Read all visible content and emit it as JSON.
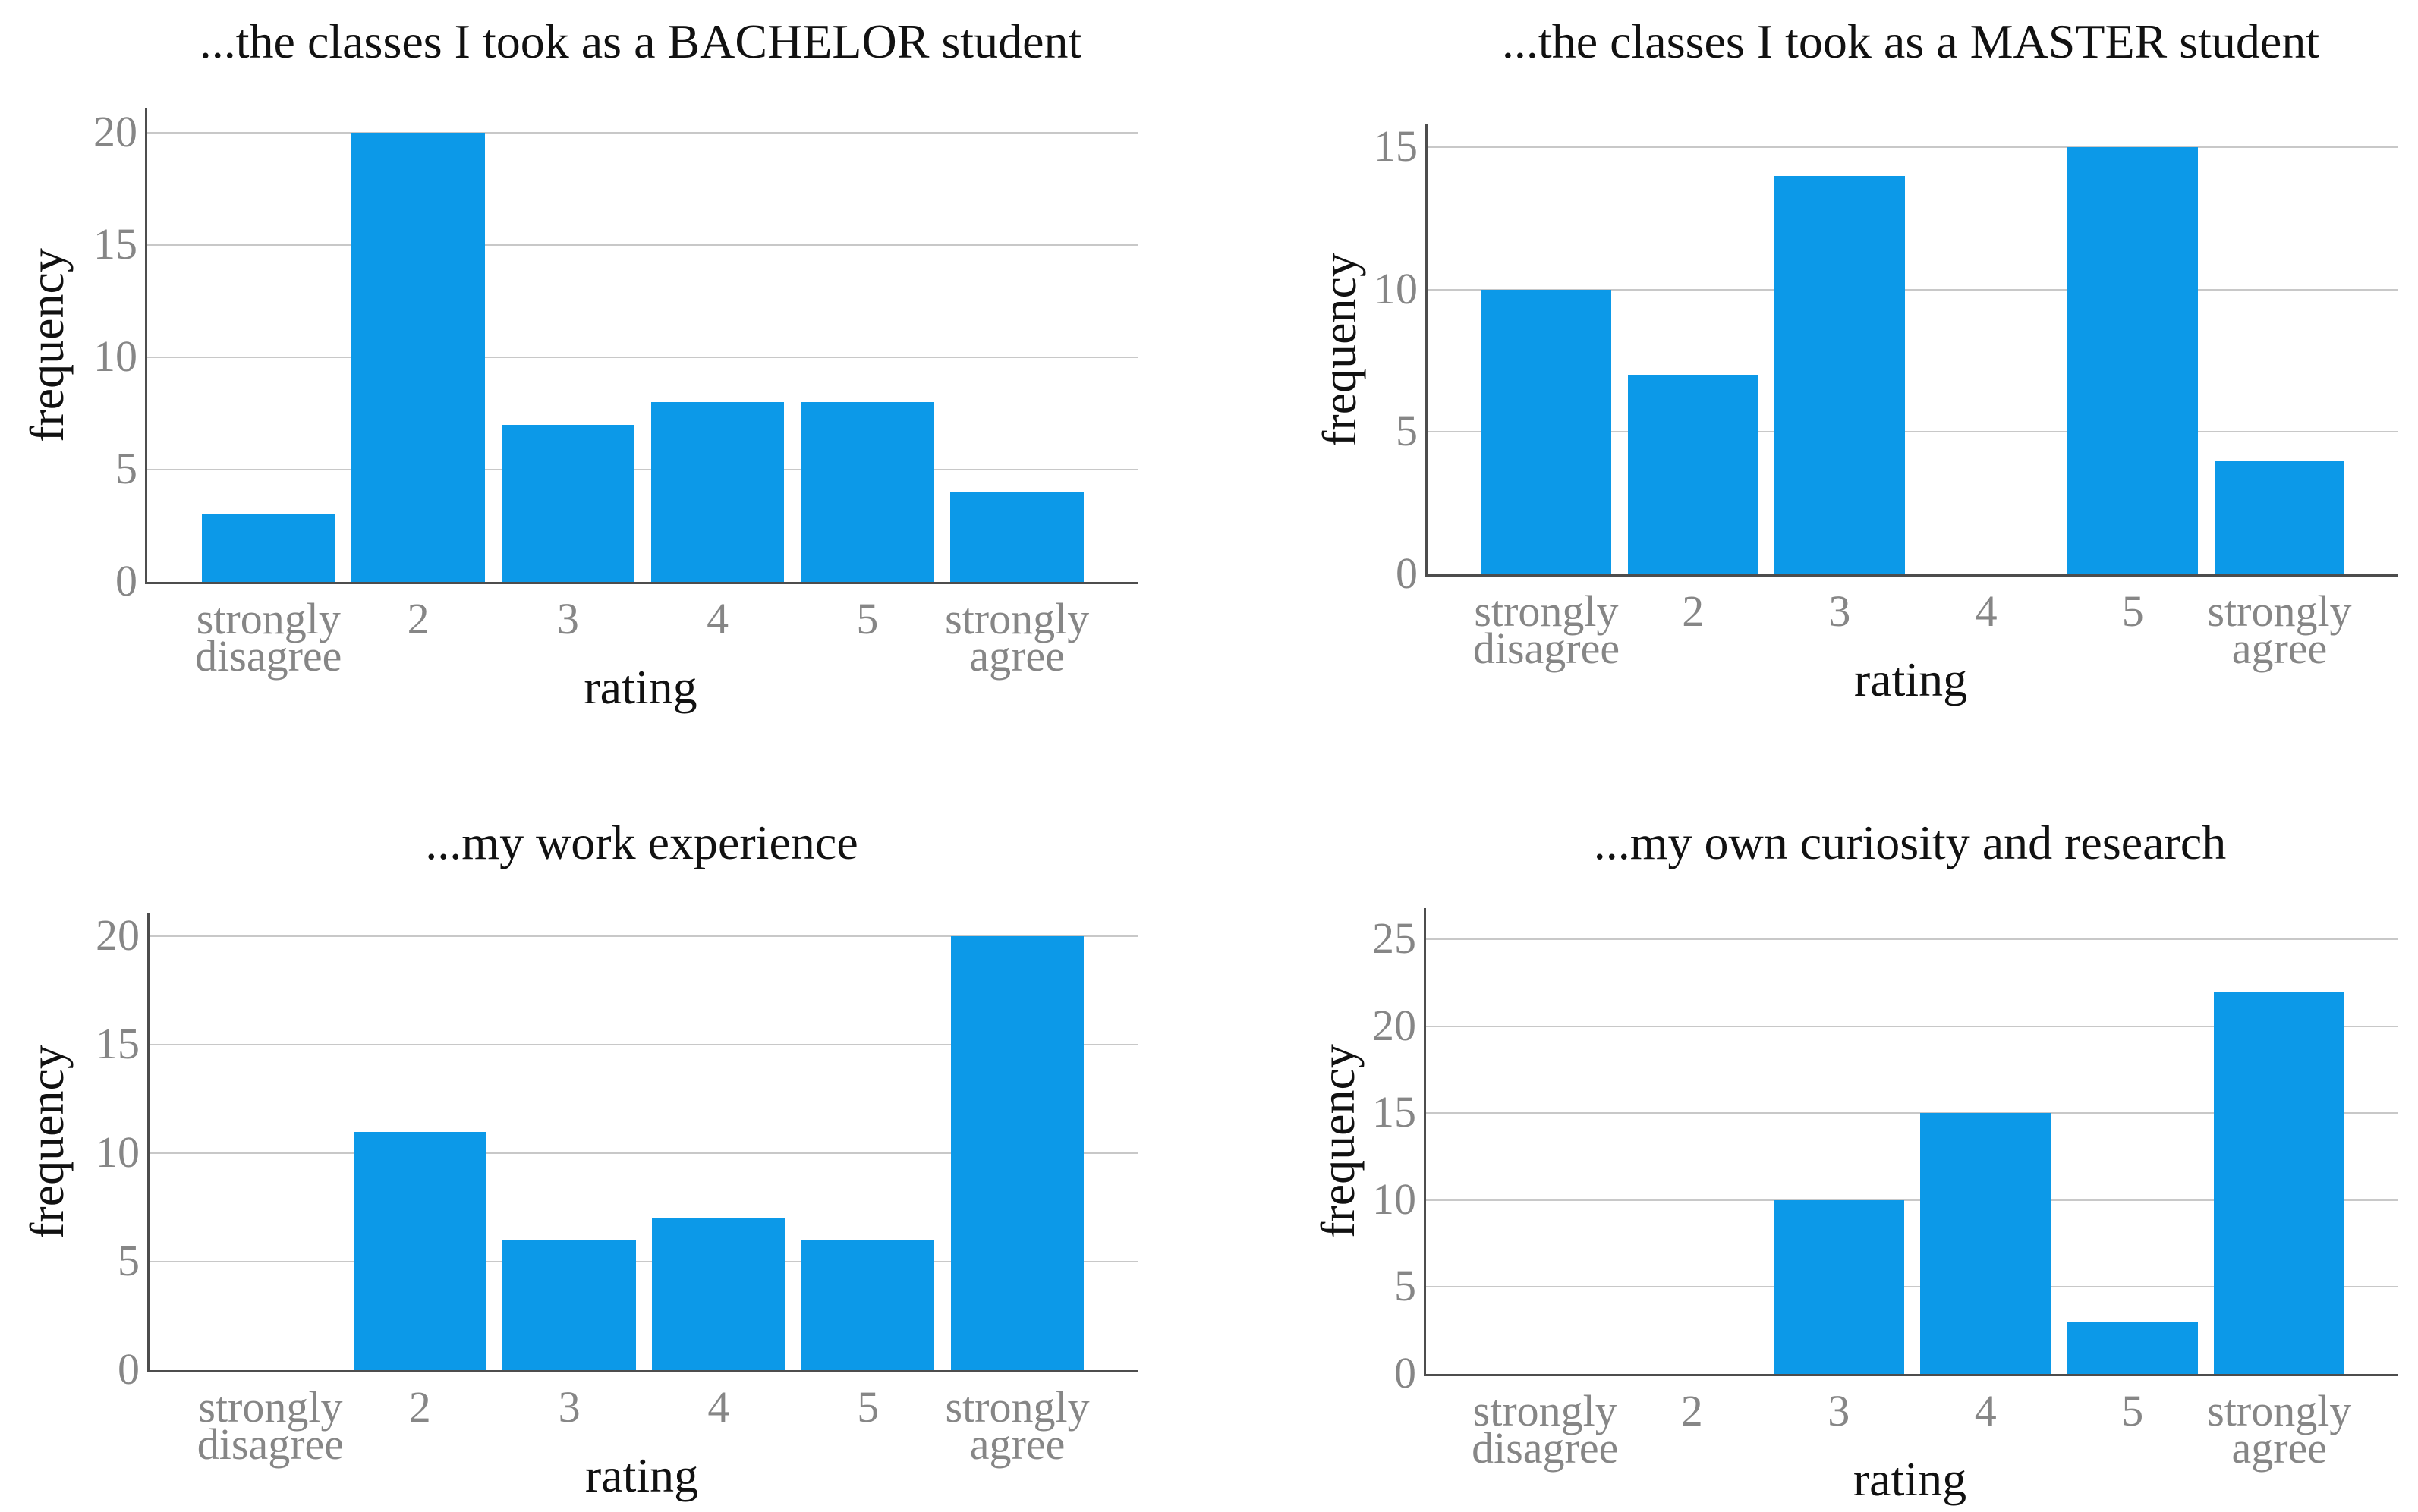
{
  "figure_title": "",
  "colors": {
    "bar": "#0c99e8",
    "gridline": "#c8c8c8",
    "spine": "#4d4d4d",
    "tick_label": "#868686",
    "text": "#111111",
    "background": "#ffffff"
  },
  "chart_data": [
    {
      "type": "bar",
      "title": "...the classes I took as a BACHELOR student",
      "xlabel": "rating",
      "ylabel": "frequency",
      "categories": [
        "strongly\ndisagree",
        "2",
        "3",
        "4",
        "5",
        "strongly\nagree"
      ],
      "values": [
        3,
        20,
        7,
        8,
        8,
        4
      ],
      "yticks": [
        0,
        5,
        10,
        15,
        20
      ],
      "ylim": [
        0,
        21.1
      ],
      "grid": "horizontal",
      "legend": "none"
    },
    {
      "type": "bar",
      "title": "...the classes I took as a MASTER student",
      "xlabel": "rating",
      "ylabel": "frequency",
      "categories": [
        "strongly\ndisagree",
        "2",
        "3",
        "4",
        "5",
        "strongly\nagree"
      ],
      "values": [
        10,
        7,
        14,
        0,
        15,
        4
      ],
      "yticks": [
        0,
        5,
        10,
        15
      ],
      "ylim": [
        0,
        15.8
      ],
      "grid": "horizontal",
      "legend": "none"
    },
    {
      "type": "bar",
      "title": "...my work experience",
      "xlabel": "rating",
      "ylabel": "frequency",
      "categories": [
        "strongly\ndisagree",
        "2",
        "3",
        "4",
        "5",
        "strongly\nagree"
      ],
      "values": [
        0,
        11,
        6,
        7,
        6,
        20
      ],
      "yticks": [
        0,
        5,
        10,
        15,
        20
      ],
      "ylim": [
        0,
        21.1
      ],
      "grid": "horizontal",
      "legend": "none"
    },
    {
      "type": "bar",
      "title": "...my own curiosity and research",
      "xlabel": "rating",
      "ylabel": "frequency",
      "categories": [
        "strongly\ndisagree",
        "2",
        "3",
        "4",
        "5",
        "strongly\nagree"
      ],
      "values": [
        0,
        0,
        10,
        15,
        3,
        22
      ],
      "yticks": [
        0,
        5,
        10,
        15,
        20,
        25
      ],
      "ylim": [
        0,
        26.8
      ],
      "grid": "horizontal",
      "legend": "none"
    }
  ]
}
